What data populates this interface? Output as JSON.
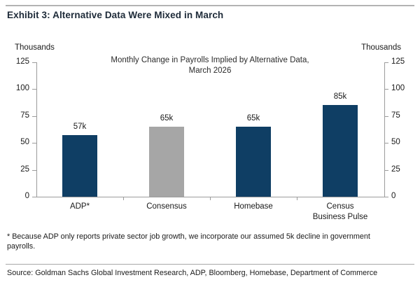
{
  "exhibit": {
    "title": "Exhibit 3: Alternative Data Were Mixed in March"
  },
  "chart_data": {
    "type": "bar",
    "title": "Monthly Change in Payrolls Implied by Alternative Data,",
    "subtitle": "March 2026",
    "left_axis_unit": "Thousands",
    "right_axis_unit": "Thousands",
    "categories": [
      "ADP*",
      "Consensus",
      "Homebase",
      "Census Business Pulse"
    ],
    "values": [
      57,
      65,
      65,
      85
    ],
    "value_labels": [
      "57k",
      "65k",
      "65k",
      "85k"
    ],
    "bar_colors": [
      "#0f3e64",
      "#a6a6a6",
      "#0f3e64",
      "#0f3e64"
    ],
    "ylim": [
      0,
      125
    ],
    "yticks": [
      0,
      25,
      50,
      75,
      100,
      125
    ],
    "grid": false,
    "legend_position": "none",
    "axis_color": "#9b9b9b"
  },
  "footnote": "* Because ADP only reports private sector job growth, we incorporate our assumed 5k decline in government payrolls.",
  "source": "Source: Goldman Sachs Global Investment Research, ADP, Bloomberg, Homebase, Department of Commerce"
}
